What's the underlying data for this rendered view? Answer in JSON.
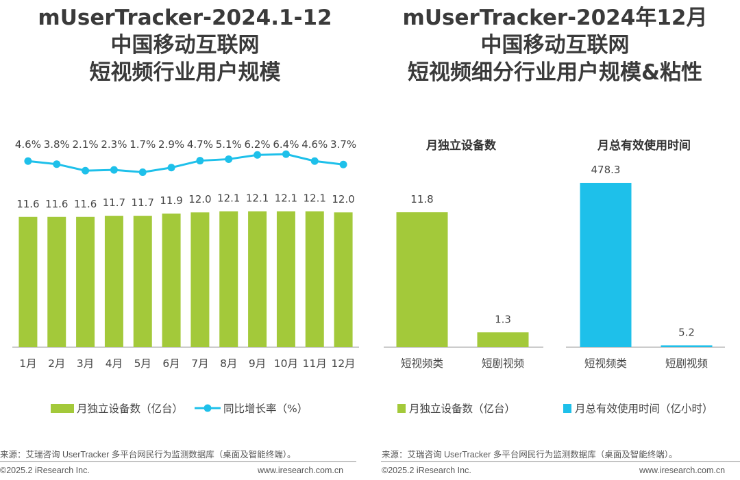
{
  "left_panel": {
    "title_lines": [
      "mUserTracker-2024.1-12",
      "中国移动互联网",
      "短视频行业用户规模"
    ],
    "legend_bar": "月独立设备数（亿台）",
    "legend_line": "同比增长率（%）",
    "source": "来源：艾瑞咨询 UserTracker 多平台网民行为监测数据库（桌面及智能终端）。",
    "copyright": "©2025.2 iResearch Inc.",
    "website": "www.iresearch.com.cn"
  },
  "right_panel": {
    "title_lines": [
      "mUserTracker-2024年12月",
      "中国移动互联网",
      "短视频细分行业用户规模&粘性"
    ],
    "legend_devices": "月独立设备数（亿台）",
    "legend_time": "月总有效使用时间（亿小时）",
    "source": "来源：艾瑞咨询 UserTracker 多平台网民行为监测数据库（桌面及智能终端）。",
    "copyright": "©2025.2 iResearch Inc.",
    "website": "www.iresearch.com.cn"
  },
  "colors": {
    "bar_green": "#a3c93a",
    "line_cyan": "#1ec0ea",
    "time_blue": "#1ec0ea"
  },
  "chart_data": [
    {
      "type": "bar",
      "categories": [
        "1月",
        "2月",
        "3月",
        "4月",
        "5月",
        "6月",
        "7月",
        "8月",
        "9月",
        "10月",
        "11月",
        "12月"
      ],
      "series": [
        {
          "name": "月独立设备数（亿台）",
          "type": "bar",
          "values": [
            11.6,
            11.6,
            11.6,
            11.7,
            11.7,
            11.9,
            12.0,
            12.1,
            12.1,
            12.1,
            12.1,
            12.0
          ],
          "labels": [
            "11.6",
            "11.6",
            "11.6",
            "11.7",
            "11.7",
            "11.9",
            "12.0",
            "12.1",
            "12.1",
            "12.1",
            "12.1",
            "12.0"
          ]
        },
        {
          "name": "同比增长率（%）",
          "type": "line",
          "values": [
            4.6,
            3.8,
            2.1,
            2.3,
            1.7,
            2.9,
            4.7,
            5.1,
            6.2,
            6.4,
            4.6,
            3.7
          ],
          "labels": [
            "4.6%",
            "3.8%",
            "2.1%",
            "2.3%",
            "1.7%",
            "2.9%",
            "4.7%",
            "5.1%",
            "6.2%",
            "6.4%",
            "4.6%",
            "3.7%"
          ]
        }
      ],
      "legend": "bottom"
    },
    {
      "type": "bar",
      "title": "月独立设备数",
      "categories": [
        "短视频类",
        "短剧视频"
      ],
      "values": [
        11.8,
        1.3
      ],
      "labels": [
        "11.8",
        "1.3"
      ]
    },
    {
      "type": "bar",
      "title": "月总有效使用时间",
      "categories": [
        "短视频类",
        "短剧视频"
      ],
      "values": [
        478.3,
        5.2
      ],
      "labels": [
        "478.3",
        "5.2"
      ]
    }
  ]
}
